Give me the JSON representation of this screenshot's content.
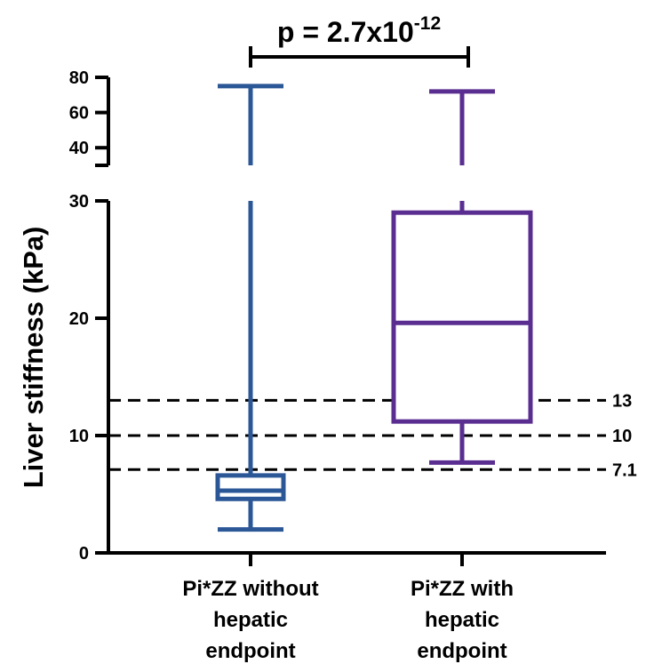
{
  "chart_data": {
    "type": "box",
    "ylabel": "Liver stiffness (kPa)",
    "y_axis": {
      "broken": true,
      "lower_segment": {
        "range": [
          0,
          30
        ],
        "ticks": [
          0,
          10,
          20,
          30
        ],
        "tick_labels": [
          "0",
          "10",
          "20",
          "30"
        ]
      },
      "upper_segment": {
        "range": [
          30,
          80
        ],
        "ticks": [
          40,
          60,
          80
        ],
        "tick_labels": [
          "40",
          "60",
          "80"
        ]
      }
    },
    "categories": [
      {
        "lines": [
          "Pi*ZZ without",
          "hepatic",
          "endpoint"
        ]
      },
      {
        "lines": [
          "Pi*ZZ with",
          "hepatic",
          "endpoint"
        ]
      }
    ],
    "boxes": [
      {
        "min": 2.0,
        "q1": 4.6,
        "median": 5.3,
        "q3": 6.6,
        "max": 75,
        "color": "#2b5797"
      },
      {
        "min": 7.7,
        "q1": 11.2,
        "median": 19.6,
        "q3": 29.0,
        "max": 72,
        "color": "#5a2d91"
      }
    ],
    "reference_lines": [
      {
        "value": 13,
        "label": "13"
      },
      {
        "value": 10,
        "label": "10"
      },
      {
        "value": 7.1,
        "label": "7.1"
      }
    ],
    "annotation": {
      "text": "p = 2.7x10",
      "exponent": "-12"
    }
  }
}
